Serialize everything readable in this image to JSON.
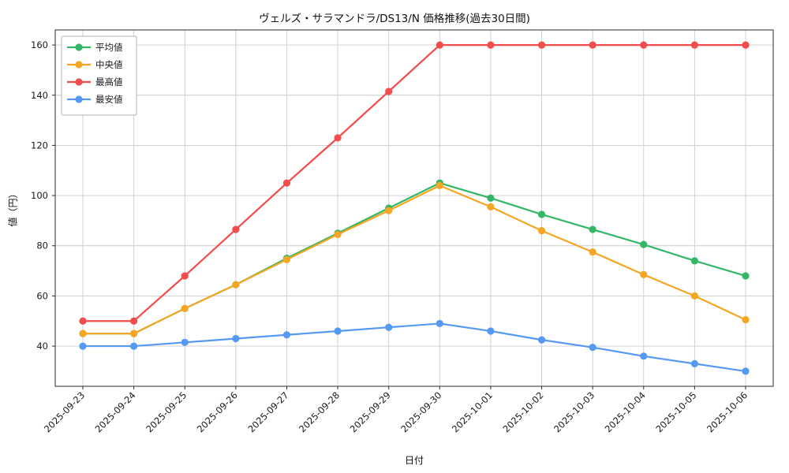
{
  "chart_data": {
    "type": "line",
    "title": "ヴェルズ・サラマンドラ/DS13/N 価格推移(過去30日間)",
    "xlabel": "日付",
    "ylabel": "値（円）",
    "x": [
      "2025-09-23",
      "2025-09-24",
      "2025-09-25",
      "2025-09-26",
      "2025-09-27",
      "2025-09-28",
      "2025-09-29",
      "2025-09-30",
      "2025-10-01",
      "2025-10-02",
      "2025-10-03",
      "2025-10-04",
      "2025-10-05",
      "2025-10-06"
    ],
    "series": [
      {
        "key": "average",
        "name": "平均値",
        "color": "#33b766",
        "values": [
          45,
          45,
          55,
          64.5,
          75,
          85,
          95,
          105,
          99,
          92.5,
          86.5,
          80.5,
          74,
          68
        ]
      },
      {
        "key": "median",
        "name": "中央値",
        "color": "#f5a623",
        "values": [
          45,
          45,
          55,
          64.5,
          74.5,
          84.5,
          94,
          104,
          95.5,
          86,
          77.5,
          68.5,
          60,
          50.5
        ]
      },
      {
        "key": "max",
        "name": "最高値",
        "color": "#f24c4c",
        "values": [
          50,
          50,
          68,
          86.5,
          105,
          123,
          141.5,
          160,
          160,
          160,
          160,
          160,
          160,
          160
        ]
      },
      {
        "key": "min",
        "name": "最安値",
        "color": "#5599f5",
        "values": [
          40,
          40,
          41.5,
          43,
          44.5,
          46,
          47.5,
          49,
          46,
          42.5,
          39.5,
          36,
          33,
          30
        ]
      }
    ],
    "yticks": [
      40,
      60,
      80,
      100,
      120,
      140,
      160
    ],
    "ylim": [
      24,
      166
    ],
    "grid": true,
    "legend_position": "upper-left",
    "colors": {
      "grid": "#cccccc",
      "spine": "#2b2b2b",
      "tick_text": "#1a1a1a",
      "legend_border": "#b0b0b0",
      "legend_bg": "#ffffff"
    }
  }
}
